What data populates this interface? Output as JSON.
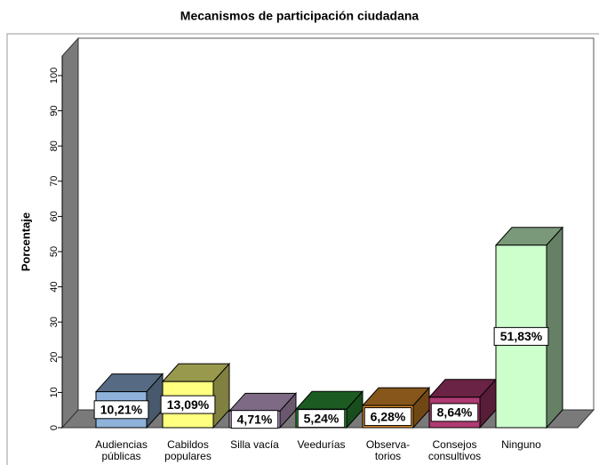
{
  "chart_data": {
    "type": "bar3d",
    "title": "Mecanismos de participación ciudadana",
    "y_label": "Porcentaje",
    "categories": [
      [
        "Audiencias",
        "públicas"
      ],
      [
        "Cabildos",
        "populares"
      ],
      [
        "Silla vacía"
      ],
      [
        "Veedurías"
      ],
      [
        "Observa-",
        "torios"
      ],
      [
        "Consejos",
        "consultivos"
      ],
      [
        "Ninguno"
      ]
    ],
    "values": [
      10.21,
      13.09,
      4.71,
      5.24,
      6.28,
      8.64,
      51.83
    ],
    "value_labels": [
      "10,21%",
      "13,09%",
      "4,71%",
      "5,24%",
      "6,28%",
      "8,64%",
      "51,83%"
    ],
    "colors": [
      "#8fb2da",
      "#ffff80",
      "#d2b0dc",
      "#2f9a3a",
      "#e0902c",
      "#b03a72",
      "#ccffcc"
    ],
    "ylim": [
      0,
      100
    ],
    "yticks": [
      0,
      10,
      20,
      30,
      40,
      50,
      60,
      70,
      80,
      90,
      100
    ]
  }
}
